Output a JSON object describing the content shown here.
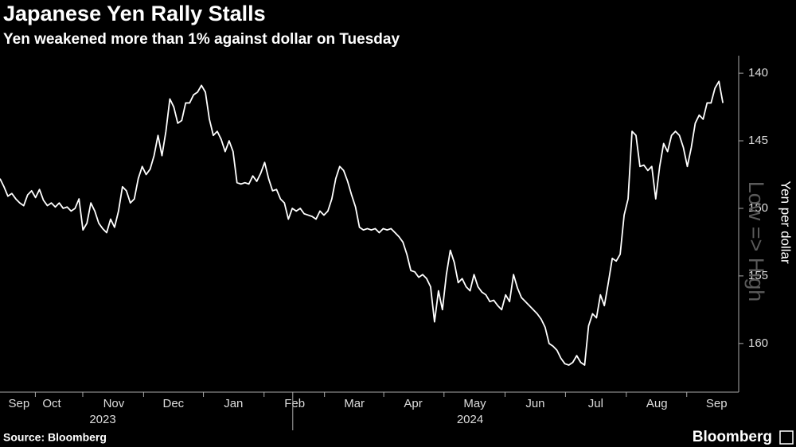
{
  "title": "Japanese Yen Rally Stalls",
  "subtitle": "Yen weakened more than 1% against dollar on Tuesday",
  "source": "Source: Bloomberg",
  "brand": "Bloomberg",
  "chart_data": {
    "type": "line",
    "y_label": "Yen per dollar",
    "annotation": "Low => High",
    "color": "#ffffff",
    "y_axis_side": "right",
    "ylim": [
      163.6,
      138.7
    ],
    "yticks": [
      140,
      145,
      150,
      155,
      160
    ],
    "xlim": [
      0,
      187
    ],
    "xticks": [
      {
        "value": 4.8,
        "label": "Sep"
      },
      {
        "value": 13.1,
        "label": "Oct"
      },
      {
        "value": 28.8,
        "label": "Nov"
      },
      {
        "value": 43.9,
        "label": "Dec"
      },
      {
        "value": 59.1,
        "label": "Jan"
      },
      {
        "value": 74.6,
        "label": "Feb"
      },
      {
        "value": 89.7,
        "label": "Mar"
      },
      {
        "value": 104.6,
        "label": "Apr"
      },
      {
        "value": 120.2,
        "label": "May"
      },
      {
        "value": 135.5,
        "label": "Jun"
      },
      {
        "value": 150.8,
        "label": "Jul"
      },
      {
        "value": 166.3,
        "label": "Aug"
      },
      {
        "value": 181.4,
        "label": "Sep"
      }
    ],
    "year_labels": [
      {
        "value": 26,
        "label": "2023"
      },
      {
        "value": 119,
        "label": "2024"
      }
    ],
    "values": [
      147.8,
      148.4,
      149.1,
      148.9,
      149.3,
      149.6,
      149.8,
      149.0,
      148.7,
      149.2,
      148.6,
      149.4,
      149.8,
      149.6,
      149.9,
      149.6,
      150.0,
      149.9,
      150.2,
      150.0,
      149.3,
      151.6,
      151.1,
      149.6,
      150.2,
      151.1,
      151.5,
      151.8,
      150.8,
      151.4,
      150.2,
      148.4,
      148.7,
      149.6,
      149.3,
      147.8,
      146.9,
      147.5,
      147.1,
      146.1,
      144.6,
      146.1,
      144.3,
      141.9,
      142.5,
      143.7,
      143.5,
      142.2,
      142.2,
      141.6,
      141.4,
      140.9,
      141.4,
      143.4,
      144.6,
      144.3,
      144.9,
      145.8,
      145.0,
      145.8,
      148.1,
      148.2,
      148.1,
      148.2,
      147.6,
      148.0,
      147.4,
      146.6,
      147.8,
      148.7,
      148.6,
      149.3,
      149.6,
      150.8,
      150.0,
      150.2,
      150.0,
      150.4,
      150.5,
      150.6,
      150.8,
      150.2,
      150.5,
      150.2,
      149.3,
      147.8,
      146.9,
      147.2,
      148.0,
      149.0,
      149.9,
      151.4,
      151.6,
      151.5,
      151.6,
      151.5,
      151.8,
      151.5,
      151.6,
      151.5,
      151.8,
      152.1,
      152.5,
      153.4,
      154.6,
      154.7,
      155.1,
      154.9,
      155.2,
      155.8,
      158.4,
      156.1,
      157.5,
      154.9,
      153.1,
      154.0,
      155.5,
      155.2,
      155.8,
      156.1,
      154.9,
      155.8,
      156.2,
      156.4,
      156.9,
      156.8,
      157.2,
      157.5,
      156.4,
      156.9,
      154.9,
      155.9,
      156.6,
      156.9,
      157.2,
      157.5,
      157.8,
      158.2,
      158.8,
      160.0,
      160.2,
      160.5,
      161.1,
      161.5,
      161.6,
      161.4,
      160.9,
      161.4,
      161.6,
      158.7,
      157.8,
      158.1,
      156.4,
      157.2,
      155.5,
      153.7,
      153.9,
      153.4,
      150.5,
      149.3,
      144.3,
      144.6,
      146.9,
      146.8,
      147.2,
      146.9,
      149.3,
      146.9,
      145.2,
      145.8,
      144.6,
      144.3,
      144.6,
      145.5,
      146.9,
      145.5,
      143.7,
      143.1,
      143.4,
      142.2,
      142.2,
      141.1,
      140.6,
      142.2
    ]
  }
}
